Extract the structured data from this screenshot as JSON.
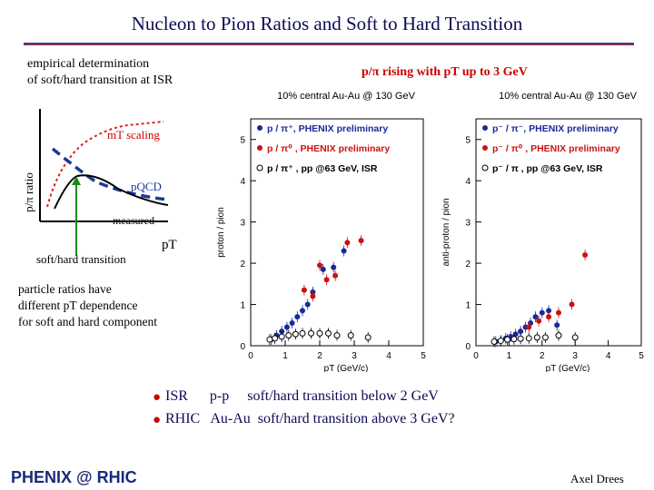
{
  "slide": {
    "title": "Nucleon to Pion Ratios and Soft to Hard Transition",
    "empirical_text_1": "empirical determination",
    "empirical_text_2": "of soft/hard transition at ISR",
    "rising_text": "p/π rising with pT up to 3 GeV",
    "particle_text_1": "particle ratios have",
    "particle_text_2": "different pT dependence",
    "particle_text_3": "for soft and hard component",
    "bullet_1": "ISR      p-p     soft/hard transition below 2 GeV",
    "bullet_2": "RHIC   Au-Au  soft/hard transition above 3 GeV?",
    "author": "Axel Drees",
    "logo_text": "PHENIX @ RHIC"
  },
  "sketch": {
    "ylabel": "p/π ratio",
    "mt_label": "mT scaling",
    "pqcd_label": "pQCD",
    "measured_label": "measured",
    "transition_label": "soft/hard transition",
    "xlabel": "pT",
    "colors": {
      "mt": "#e02020",
      "pqcd": "#1a3a99",
      "measured": "#000000",
      "arrow": "#1a8a1a"
    }
  },
  "chart_data": [
    {
      "type": "scatter",
      "title": "10% central Au-Au @ 130 GeV",
      "xlabel": "pT (GeV/c)",
      "ylabel": "proton / pion",
      "xlim": [
        0,
        5
      ],
      "ylim": [
        0,
        5.5
      ],
      "xticks": [
        0,
        1,
        2,
        3,
        4,
        5
      ],
      "yticks": [
        0,
        1,
        2,
        3,
        4,
        5
      ],
      "series": [
        {
          "name": "p / π⁺, PHENIX preliminary",
          "color": "#1a2a9a",
          "marker": "filled",
          "x": [
            0.6,
            0.75,
            0.9,
            1.05,
            1.2,
            1.35,
            1.5,
            1.65,
            1.8,
            2.1,
            2.4,
            2.7
          ],
          "y": [
            0.15,
            0.25,
            0.35,
            0.45,
            0.55,
            0.7,
            0.85,
            1.0,
            1.3,
            1.85,
            1.9,
            2.3
          ]
        },
        {
          "name": "p / π⁰ , PHENIX preliminary",
          "color": "#cc1111",
          "marker": "filled",
          "x": [
            1.55,
            1.8,
            2.0,
            2.2,
            2.45,
            2.8,
            3.2
          ],
          "y": [
            1.35,
            1.2,
            1.95,
            1.6,
            1.7,
            2.5,
            2.55
          ]
        },
        {
          "name": "p / π⁺ ,  pp @63 GeV, ISR",
          "color": "#000000",
          "marker": "open",
          "x": [
            0.55,
            0.7,
            0.9,
            1.1,
            1.3,
            1.5,
            1.75,
            2.0,
            2.25,
            2.5,
            2.9,
            3.4
          ],
          "y": [
            0.15,
            0.18,
            0.22,
            0.25,
            0.28,
            0.3,
            0.3,
            0.3,
            0.3,
            0.25,
            0.25,
            0.2
          ]
        }
      ]
    },
    {
      "type": "scatter",
      "title": "10% central Au-Au @ 130 GeV",
      "xlabel": "pT (GeV/c)",
      "ylabel": "anti-proton / pion",
      "xlim": [
        0,
        5
      ],
      "ylim": [
        0,
        5.5
      ],
      "xticks": [
        0,
        1,
        2,
        3,
        4,
        5
      ],
      "yticks": [
        0,
        1,
        2,
        3,
        4,
        5
      ],
      "series": [
        {
          "name": "p⁻ / π⁻, PHENIX preliminary",
          "color": "#1a2a9a",
          "marker": "filled",
          "x": [
            0.6,
            0.75,
            0.9,
            1.05,
            1.2,
            1.35,
            1.5,
            1.65,
            1.8,
            2.0,
            2.2,
            2.45
          ],
          "y": [
            0.1,
            0.12,
            0.18,
            0.22,
            0.28,
            0.35,
            0.45,
            0.55,
            0.7,
            0.8,
            0.85,
            0.5
          ]
        },
        {
          "name": "p⁻ / π⁰ , PHENIX preliminary",
          "color": "#cc1111",
          "marker": "filled",
          "x": [
            1.6,
            1.9,
            2.2,
            2.5,
            2.9,
            3.3
          ],
          "y": [
            0.45,
            0.6,
            0.7,
            0.8,
            1.0,
            2.2
          ]
        },
        {
          "name": "p⁻ / π , pp @63 GeV, ISR",
          "color": "#000000",
          "marker": "open",
          "x": [
            0.55,
            0.75,
            0.95,
            1.15,
            1.35,
            1.6,
            1.85,
            2.1,
            2.5,
            3.0
          ],
          "y": [
            0.1,
            0.12,
            0.15,
            0.16,
            0.17,
            0.18,
            0.2,
            0.2,
            0.25,
            0.2
          ]
        }
      ]
    }
  ]
}
